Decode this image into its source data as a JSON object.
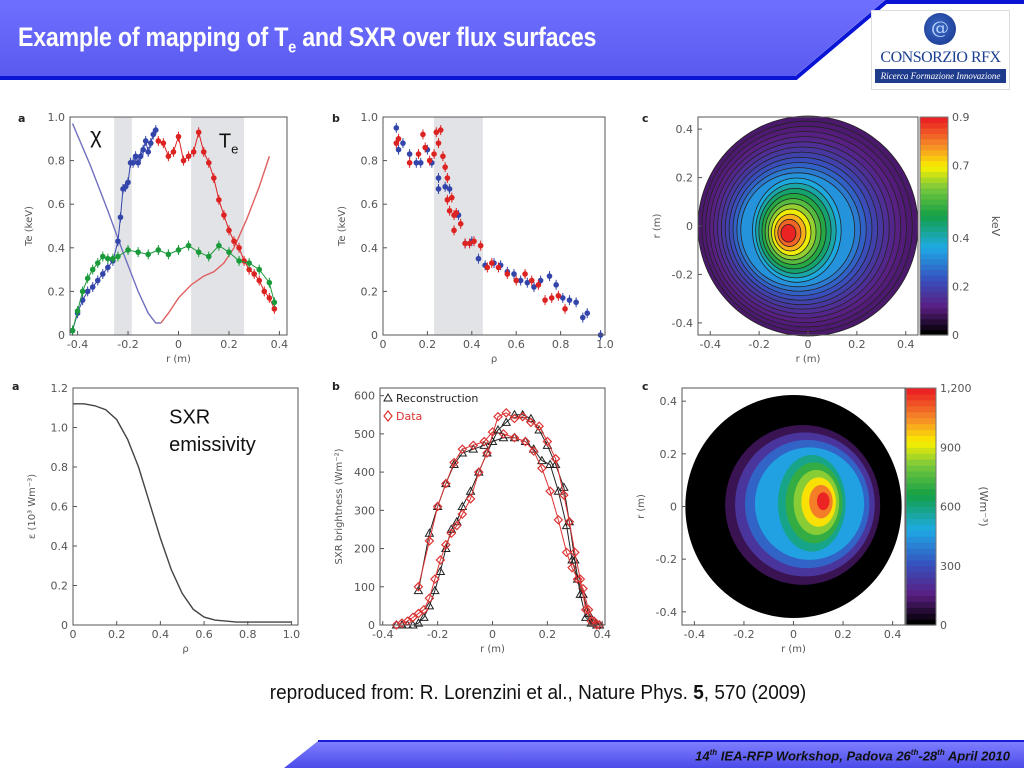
{
  "header": {
    "title_main": "Example of mapping of T",
    "title_sub": "e",
    "title_rest": " and SXR over flux surfaces",
    "colors": {
      "bar": "#6666ff",
      "edge": "#0a14d4"
    }
  },
  "logo": {
    "name": "CONSORZIO RFX",
    "tagline": "Ricerca Formazione Innovazione",
    "icon": "swirl-emblem-icon"
  },
  "reference": {
    "prefix": "reproduced from: R. Lorenzini et al., Nature Phys. ",
    "volume": "5",
    "suffix": ", 570 (2009)"
  },
  "footer": {
    "num": "14",
    "num_sup": "th",
    "mid": " IEA-RFP Workshop, Padova 26",
    "d1_sup": "th",
    "dash": "-28",
    "d2_sup": "th",
    "end": " April 2010"
  },
  "chart_data": [
    {
      "id": "a-top",
      "panel_label": "a",
      "type": "line",
      "title": "",
      "xlabel": "r (m)",
      "ylabel": "Te (keV)",
      "xlim": [
        -0.43,
        0.43
      ],
      "ylim": [
        0,
        1.0
      ],
      "xticks": [
        "-0.4",
        "-0.2",
        "0",
        "0.2",
        "0.4"
      ],
      "xtick_values": [
        -0.4,
        -0.2,
        0,
        0.2,
        0.4
      ],
      "yticks": [
        "0",
        "0.2",
        "0.4",
        "0.6",
        "0.8",
        "1.0"
      ],
      "ytick_values": [
        0,
        0.2,
        0.4,
        0.6,
        0.8,
        1.0
      ],
      "shaded_bands": [
        [
          -0.255,
          -0.185
        ],
        [
          0.05,
          0.26
        ]
      ],
      "annotations": [
        {
          "text": "χ",
          "x": -0.35,
          "y": 0.88
        },
        {
          "text": "T",
          "sub": "e",
          "x": 0.16,
          "y": 0.86
        }
      ],
      "series": [
        {
          "name": "chi-left",
          "color": "#7070c0",
          "style": "line",
          "x": [
            -0.42,
            -0.35,
            -0.28,
            -0.22,
            -0.16,
            -0.12,
            -0.09,
            -0.07
          ],
          "y": [
            0.97,
            0.78,
            0.57,
            0.38,
            0.2,
            0.1,
            0.055,
            0.055
          ]
        },
        {
          "name": "chi-right",
          "color": "#e06060",
          "style": "line",
          "x": [
            -0.07,
            -0.04,
            0.0,
            0.05,
            0.1,
            0.14,
            0.18,
            0.22,
            0.27,
            0.32,
            0.36
          ],
          "y": [
            0.055,
            0.1,
            0.17,
            0.23,
            0.27,
            0.29,
            0.33,
            0.4,
            0.53,
            0.68,
            0.82
          ]
        },
        {
          "name": "Te-blue",
          "color": "#3344aa",
          "style": "points-line",
          "x": [
            -0.42,
            -0.4,
            -0.38,
            -0.36,
            -0.34,
            -0.32,
            -0.3,
            -0.28,
            -0.26,
            -0.24,
            -0.23,
            -0.22,
            -0.21,
            -0.2,
            -0.19,
            -0.18,
            -0.17,
            -0.16,
            -0.15,
            -0.14,
            -0.13,
            -0.12,
            -0.11,
            -0.1,
            -0.09
          ],
          "y": [
            0.02,
            0.1,
            0.16,
            0.2,
            0.22,
            0.25,
            0.28,
            0.31,
            0.34,
            0.43,
            0.54,
            0.67,
            0.68,
            0.7,
            0.79,
            0.79,
            0.82,
            0.79,
            0.82,
            0.85,
            0.89,
            0.84,
            0.88,
            0.92,
            0.94
          ]
        },
        {
          "name": "Te-red",
          "color": "#dd2222",
          "style": "points-line",
          "x": [
            -0.08,
            -0.06,
            -0.04,
            -0.02,
            0.0,
            0.02,
            0.04,
            0.06,
            0.08,
            0.1,
            0.12,
            0.14,
            0.16,
            0.18,
            0.2,
            0.22,
            0.24,
            0.26,
            0.28,
            0.3,
            0.32,
            0.34,
            0.36,
            0.38
          ],
          "y": [
            0.89,
            0.88,
            0.82,
            0.84,
            0.91,
            0.8,
            0.82,
            0.84,
            0.93,
            0.84,
            0.79,
            0.72,
            0.62,
            0.55,
            0.48,
            0.43,
            0.4,
            0.34,
            0.3,
            0.28,
            0.25,
            0.2,
            0.17,
            0.12
          ]
        },
        {
          "name": "Te-green",
          "color": "#1a9a3a",
          "style": "points-line",
          "x": [
            -0.42,
            -0.4,
            -0.38,
            -0.36,
            -0.34,
            -0.32,
            -0.3,
            -0.28,
            -0.26,
            -0.24,
            -0.2,
            -0.16,
            -0.12,
            -0.08,
            -0.04,
            0.0,
            0.04,
            0.08,
            0.12,
            0.16,
            0.2,
            0.24,
            0.28,
            0.32,
            0.36,
            0.38
          ],
          "y": [
            0.02,
            0.11,
            0.2,
            0.26,
            0.3,
            0.33,
            0.36,
            0.35,
            0.35,
            0.36,
            0.39,
            0.38,
            0.37,
            0.39,
            0.37,
            0.39,
            0.41,
            0.38,
            0.36,
            0.41,
            0.38,
            0.34,
            0.33,
            0.3,
            0.24,
            0.15
          ]
        }
      ]
    },
    {
      "id": "b-top",
      "panel_label": "b",
      "type": "scatter",
      "title": "",
      "xlabel": "ρ",
      "ylabel": "Te (keV)",
      "xlim": [
        0,
        1.0
      ],
      "ylim": [
        0,
        1.0
      ],
      "xticks": [
        "0",
        "0.2",
        "0.4",
        "0.6",
        "0.8",
        "1.0"
      ],
      "xtick_values": [
        0,
        0.2,
        0.4,
        0.6,
        0.8,
        1.0
      ],
      "yticks": [
        "0",
        "0.2",
        "0.4",
        "0.6",
        "0.8",
        "1.0"
      ],
      "ytick_values": [
        0,
        0.2,
        0.4,
        0.6,
        0.8,
        1.0
      ],
      "shaded_bands": [
        [
          0.23,
          0.45
        ]
      ],
      "series": [
        {
          "name": "blue",
          "color": "#3344aa",
          "style": "points",
          "x": [
            0.06,
            0.07,
            0.09,
            0.12,
            0.15,
            0.17,
            0.2,
            0.22,
            0.25,
            0.25,
            0.28,
            0.3,
            0.34,
            0.37,
            0.4,
            0.43,
            0.46,
            0.5,
            0.53,
            0.56,
            0.59,
            0.62,
            0.65,
            0.68,
            0.71,
            0.75,
            0.78,
            0.81,
            0.84,
            0.87,
            0.9,
            0.92,
            0.98
          ],
          "y": [
            0.95,
            0.85,
            0.88,
            0.83,
            0.79,
            0.79,
            0.85,
            0.79,
            0.72,
            0.67,
            0.68,
            0.67,
            0.55,
            0.42,
            0.43,
            0.35,
            0.32,
            0.33,
            0.32,
            0.29,
            0.28,
            0.25,
            0.24,
            0.22,
            0.25,
            0.27,
            0.23,
            0.17,
            0.16,
            0.15,
            0.08,
            0.1,
            0.0
          ]
        },
        {
          "name": "red",
          "color": "#dd2222",
          "style": "points",
          "x": [
            0.06,
            0.07,
            0.12,
            0.16,
            0.18,
            0.19,
            0.21,
            0.23,
            0.24,
            0.25,
            0.26,
            0.27,
            0.28,
            0.29,
            0.29,
            0.3,
            0.31,
            0.32,
            0.32,
            0.33,
            0.35,
            0.37,
            0.39,
            0.41,
            0.44,
            0.47,
            0.49,
            0.52,
            0.56,
            0.6,
            0.64,
            0.67,
            0.7,
            0.73,
            0.76,
            0.79,
            0.82
          ],
          "y": [
            0.88,
            0.9,
            0.79,
            0.83,
            0.92,
            0.86,
            0.8,
            0.83,
            0.93,
            0.88,
            0.94,
            0.82,
            0.77,
            0.72,
            0.62,
            0.57,
            0.63,
            0.55,
            0.48,
            0.56,
            0.51,
            0.42,
            0.42,
            0.43,
            0.41,
            0.31,
            0.33,
            0.31,
            0.28,
            0.25,
            0.28,
            0.25,
            0.23,
            0.16,
            0.17,
            0.18,
            0.12
          ]
        }
      ]
    },
    {
      "id": "c-top",
      "panel_label": "c",
      "type": "heatmap",
      "title": "",
      "xlabel": "r (m)",
      "ylabel": "r (m)",
      "xlim": [
        -0.45,
        0.45
      ],
      "ylim": [
        -0.45,
        0.45
      ],
      "xticks": [
        "-0.4",
        "-0.2",
        "0",
        "0.2",
        "0.4"
      ],
      "xtick_values": [
        -0.4,
        -0.2,
        0,
        0.2,
        0.4
      ],
      "yticks": [
        "-0.4",
        "-0.2",
        "0",
        "0.2",
        "0.4"
      ],
      "ytick_values": [
        -0.4,
        -0.2,
        0,
        0.2,
        0.4
      ],
      "colorbar": {
        "label": "keV",
        "min": 0,
        "max": 0.9,
        "ticks": [
          "0",
          "0.2",
          "0.4",
          "0.7",
          "0.9"
        ],
        "tick_values": [
          0,
          0.2,
          0.4,
          0.7,
          0.9
        ]
      },
      "contour_lines": true,
      "hot_spot_center": [
        -0.08,
        -0.03
      ],
      "edge_radius": 0.45
    },
    {
      "id": "a-bottom",
      "panel_label": "a",
      "type": "line",
      "title": "",
      "xlabel": "ρ",
      "ylabel": "ε (10³ Wm⁻³)",
      "xlim": [
        0,
        1.03
      ],
      "ylim": [
        0,
        1.2
      ],
      "xticks": [
        "0",
        "0.2",
        "0.4",
        "0.6",
        "0.8",
        "1.0"
      ],
      "xtick_values": [
        0,
        0.2,
        0.4,
        0.6,
        0.8,
        1.0
      ],
      "yticks": [
        "0",
        "0.2",
        "0.4",
        "0.6",
        "0.8",
        "1.0",
        "1.2"
      ],
      "ytick_values": [
        0,
        0.2,
        0.4,
        0.6,
        0.8,
        1.0,
        1.2
      ],
      "annotations": [
        {
          "text": "SXR",
          "x": 0.44,
          "y": 1.02
        },
        {
          "text": "emissivity",
          "x": 0.44,
          "y": 0.88
        }
      ],
      "series": [
        {
          "name": "emissivity",
          "color": "#444444",
          "style": "line",
          "x": [
            0,
            0.05,
            0.1,
            0.15,
            0.2,
            0.25,
            0.3,
            0.35,
            0.4,
            0.45,
            0.5,
            0.55,
            0.6,
            0.65,
            0.7,
            0.75,
            0.8,
            0.9,
            1.0
          ],
          "y": [
            1.12,
            1.12,
            1.11,
            1.09,
            1.04,
            0.94,
            0.8,
            0.62,
            0.44,
            0.28,
            0.16,
            0.08,
            0.04,
            0.025,
            0.02,
            0.015,
            0.015,
            0.015,
            0.015
          ]
        }
      ]
    },
    {
      "id": "b-bottom",
      "panel_label": "b",
      "type": "line",
      "title": "",
      "xlabel": "r (m)",
      "ylabel": "SXR brightness (Wm⁻²)",
      "xlim": [
        -0.41,
        0.41
      ],
      "ylim": [
        0,
        620
      ],
      "xticks": [
        "-0.4",
        "-0.2",
        "0",
        "0.2",
        "0.4"
      ],
      "xtick_values": [
        -0.4,
        -0.2,
        0,
        0.2,
        0.4
      ],
      "yticks": [
        "0",
        "100",
        "200",
        "300",
        "400",
        "500",
        "600"
      ],
      "ytick_values": [
        0,
        100,
        200,
        300,
        400,
        500,
        600
      ],
      "legend": {
        "placement": "top-left",
        "entries": [
          {
            "label": "Reconstruction",
            "marker": "triangle",
            "color": "#222222"
          },
          {
            "label": "Data",
            "marker": "diamond",
            "color": "#dd3333"
          }
        ]
      },
      "series": [
        {
          "name": "Reconstruction-1",
          "color": "#222222",
          "marker": "triangle",
          "x": [
            -0.27,
            -0.23,
            -0.2,
            -0.17,
            -0.14,
            -0.11,
            -0.07,
            -0.03,
            0.0,
            0.04,
            0.08,
            0.12,
            0.15,
            0.18,
            0.21,
            0.24,
            0.27,
            0.29,
            0.31,
            0.33,
            0.35,
            0.37,
            0.39
          ],
          "y": [
            90,
            240,
            310,
            370,
            420,
            450,
            460,
            470,
            480,
            490,
            490,
            480,
            460,
            430,
            420,
            350,
            260,
            170,
            120,
            80,
            30,
            10,
            0
          ]
        },
        {
          "name": "Data-1",
          "color": "#dd3333",
          "marker": "diamond",
          "x": [
            -0.27,
            -0.23,
            -0.2,
            -0.17,
            -0.14,
            -0.11,
            -0.07,
            -0.03,
            0.0,
            0.04,
            0.08,
            0.12,
            0.15,
            0.18,
            0.21,
            0.24,
            0.27,
            0.29,
            0.31,
            0.33,
            0.35,
            0.37,
            0.39
          ],
          "y": [
            100,
            220,
            310,
            370,
            425,
            460,
            470,
            480,
            505,
            500,
            490,
            480,
            455,
            410,
            350,
            275,
            190,
            150,
            120,
            95,
            40,
            10,
            0
          ]
        },
        {
          "name": "Reconstruction-2",
          "color": "#222222",
          "marker": "triangle",
          "x": [
            -0.35,
            -0.33,
            -0.31,
            -0.29,
            -0.27,
            -0.25,
            -0.23,
            -0.21,
            -0.19,
            -0.17,
            -0.15,
            -0.13,
            -0.11,
            -0.08,
            -0.05,
            -0.02,
            0.02,
            0.05,
            0.08,
            0.11,
            0.14,
            0.17,
            0.2,
            0.23,
            0.26,
            0.28,
            0.3,
            0.32,
            0.34,
            0.36,
            0.38
          ],
          "y": [
            0,
            0,
            0,
            0,
            5,
            20,
            50,
            90,
            140,
            200,
            250,
            270,
            310,
            350,
            400,
            450,
            510,
            530,
            550,
            550,
            540,
            510,
            470,
            420,
            360,
            270,
            170,
            80,
            20,
            5,
            0
          ]
        },
        {
          "name": "Data-2",
          "color": "#dd3333",
          "marker": "diamond",
          "x": [
            -0.35,
            -0.33,
            -0.31,
            -0.29,
            -0.27,
            -0.25,
            -0.23,
            -0.21,
            -0.19,
            -0.17,
            -0.15,
            -0.13,
            -0.11,
            -0.08,
            -0.05,
            -0.02,
            0.02,
            0.05,
            0.08,
            0.11,
            0.14,
            0.17,
            0.2,
            0.23,
            0.26,
            0.28,
            0.3,
            0.32,
            0.34,
            0.36,
            0.38
          ],
          "y": [
            0,
            5,
            10,
            20,
            30,
            40,
            70,
            120,
            170,
            210,
            240,
            260,
            290,
            330,
            400,
            450,
            545,
            555,
            540,
            545,
            530,
            520,
            480,
            435,
            340,
            270,
            190,
            120,
            40,
            10,
            0
          ]
        }
      ]
    },
    {
      "id": "c-bottom",
      "panel_label": "c",
      "type": "heatmap",
      "title": "",
      "xlabel": "r (m)",
      "ylabel": "r (m)",
      "xlim": [
        -0.45,
        0.45
      ],
      "ylim": [
        -0.45,
        0.45
      ],
      "xticks": [
        "-0.4",
        "-0.2",
        "0",
        "0.2",
        "0.4"
      ],
      "xtick_values": [
        -0.4,
        -0.2,
        0,
        0.2,
        0.4
      ],
      "yticks": [
        "-0.4",
        "-0.2",
        "0",
        "0.2",
        "0.4"
      ],
      "ytick_values": [
        -0.4,
        -0.2,
        0,
        0.2,
        0.4
      ],
      "colorbar": {
        "label": "(Wm⁻³)",
        "min": 0,
        "max": 1200,
        "ticks": [
          "0",
          "300",
          "600",
          "900",
          "1,200"
        ],
        "tick_values": [
          0,
          300,
          600,
          900,
          1200
        ]
      },
      "contour_lines": false,
      "hot_spot_center": [
        0.12,
        0.02
      ],
      "edge_radius": 0.45
    }
  ]
}
